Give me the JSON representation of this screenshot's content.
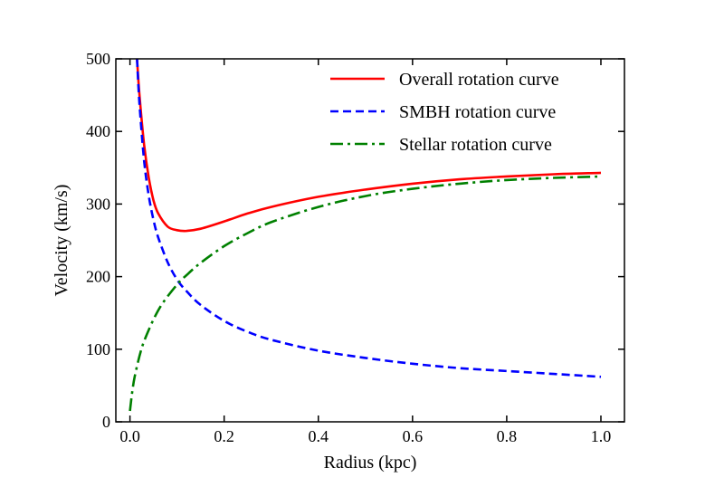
{
  "chart_data": {
    "type": "line",
    "xlabel": "Radius (kpc)",
    "ylabel": "Velocity (km/s)",
    "xlim": [
      -0.03,
      1.05
    ],
    "ylim": [
      0,
      500
    ],
    "x_ticks": [
      0.0,
      0.2,
      0.4,
      0.6,
      0.8,
      1.0
    ],
    "x_tick_labels": [
      "0.0",
      "0.2",
      "0.4",
      "0.6",
      "0.8",
      "1.0"
    ],
    "y_ticks": [
      0,
      100,
      200,
      300,
      400,
      500
    ],
    "y_tick_labels": [
      "0",
      "100",
      "200",
      "300",
      "400",
      "500"
    ],
    "grid": false,
    "legend_position": "top-right",
    "series": [
      {
        "name": "Overall rotation curve",
        "color": "#ff0000",
        "style": "solid",
        "x": [
          0.015,
          0.02,
          0.03,
          0.04,
          0.05,
          0.06,
          0.08,
          0.1,
          0.12,
          0.15,
          0.2,
          0.25,
          0.3,
          0.4,
          0.5,
          0.6,
          0.7,
          0.8,
          0.9,
          1.0
        ],
        "y": [
          500,
          452,
          382,
          336,
          305,
          287,
          269,
          264,
          263,
          266,
          276,
          287,
          296,
          310,
          320,
          328,
          334,
          338,
          341,
          343
        ]
      },
      {
        "name": "SMBH rotation curve",
        "color": "#0000ff",
        "style": "dashed",
        "x": [
          0.015,
          0.02,
          0.03,
          0.04,
          0.05,
          0.06,
          0.08,
          0.1,
          0.12,
          0.15,
          0.2,
          0.25,
          0.3,
          0.4,
          0.5,
          0.6,
          0.7,
          0.8,
          0.9,
          1.0
        ],
        "y": [
          500,
          440,
          360,
          311,
          278,
          254,
          220,
          196,
          180,
          161,
          139,
          124,
          113,
          98,
          88,
          80,
          74,
          70,
          66,
          62
        ]
      },
      {
        "name": "Stellar rotation curve",
        "color": "#008000",
        "style": "dashdot",
        "x": [
          0.0,
          0.005,
          0.01,
          0.02,
          0.03,
          0.05,
          0.07,
          0.1,
          0.12,
          0.15,
          0.2,
          0.25,
          0.3,
          0.4,
          0.5,
          0.6,
          0.7,
          0.8,
          0.9,
          1.0
        ],
        "y": [
          15,
          42,
          62,
          90,
          111,
          141,
          164,
          189,
          202,
          219,
          242,
          260,
          275,
          296,
          311,
          321,
          328,
          333,
          336,
          338
        ]
      }
    ]
  }
}
